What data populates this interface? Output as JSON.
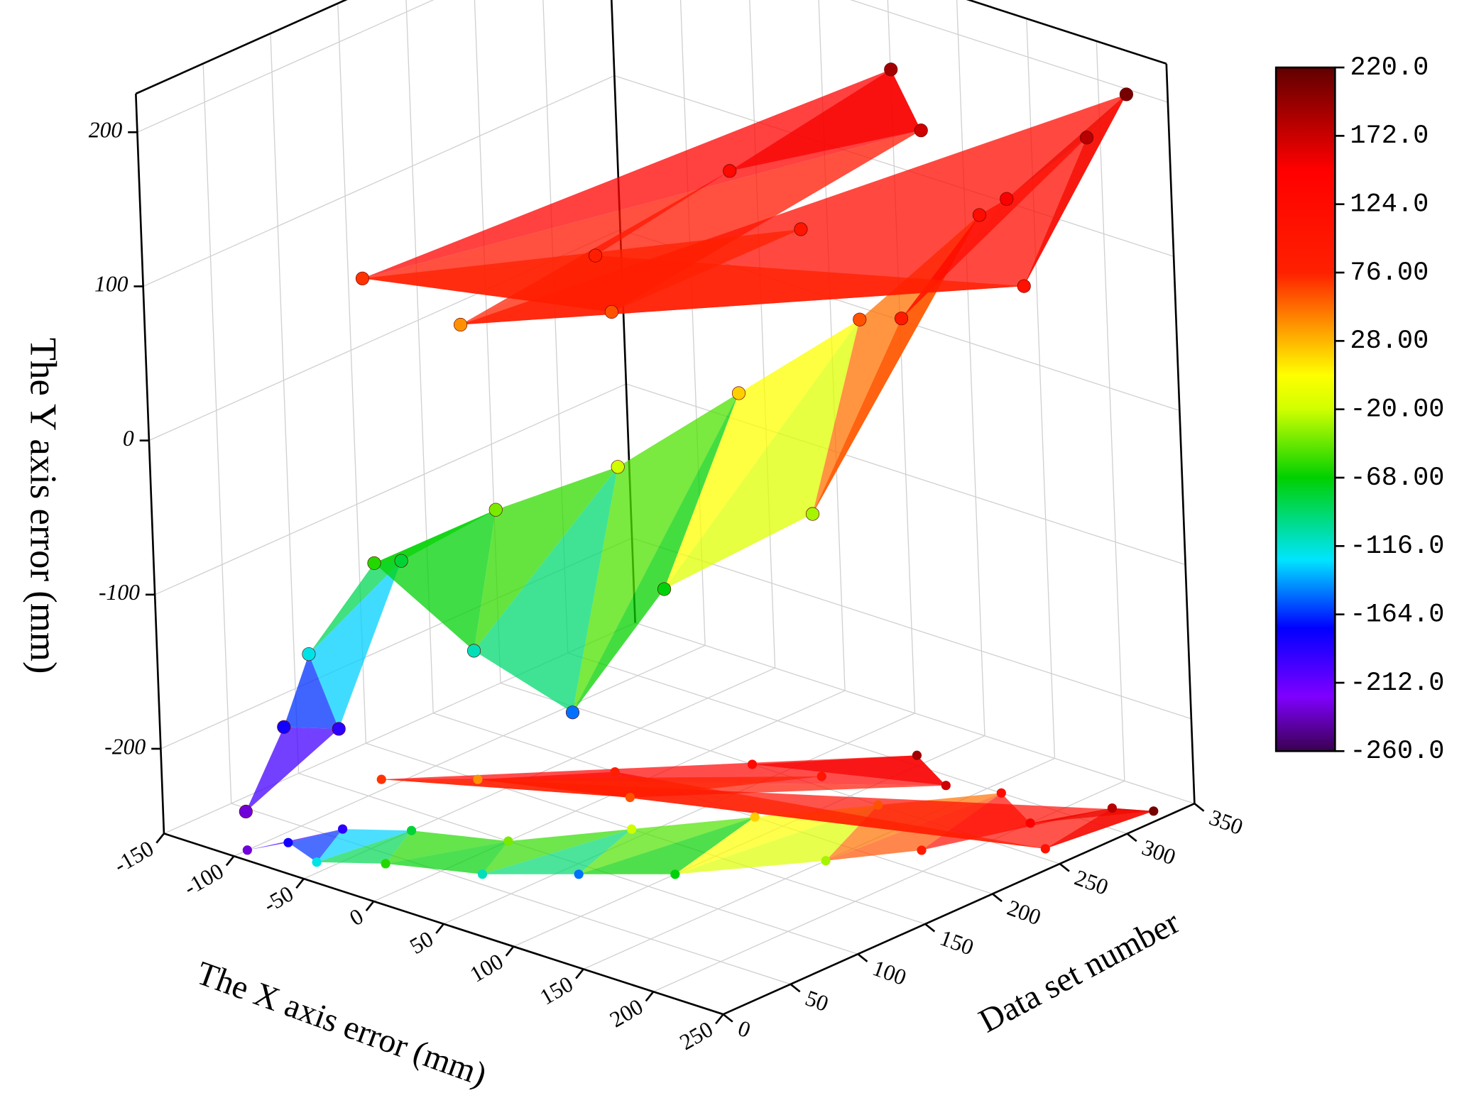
{
  "chart_data": {
    "type": "surface3d",
    "xlabel": "The X axis error (mm)",
    "ylabel": "Data set number",
    "zlabel": "The Y axis error (mm)",
    "xlim": [
      -150,
      250
    ],
    "xticks": [
      -150,
      -100,
      -50,
      0,
      50,
      100,
      150,
      200,
      250
    ],
    "ylim": [
      0,
      350
    ],
    "yticks": [
      0,
      50,
      100,
      150,
      200,
      250,
      300,
      350
    ],
    "zlim": [
      -255,
      225
    ],
    "zticks": [
      -200,
      -100,
      0,
      100,
      200
    ],
    "grid": true,
    "x": [
      -100,
      -90,
      -80,
      -60,
      -50,
      -30,
      0,
      20,
      40,
      60,
      80,
      100,
      120,
      150,
      160,
      180,
      200,
      220,
      240,
      230,
      -70,
      -20,
      30,
      90,
      130,
      -110,
      10,
      70
    ],
    "y": [
      10,
      30,
      60,
      20,
      80,
      40,
      100,
      60,
      150,
      90,
      200,
      120,
      250,
      180,
      300,
      220,
      280,
      320,
      330,
      260,
      150,
      200,
      250,
      310,
      290,
      120,
      180,
      260
    ],
    "z": [
      -230,
      -180,
      -190,
      -120,
      -80,
      -60,
      -40,
      -110,
      -20,
      -150,
      20,
      -70,
      60,
      -30,
      120,
      90,
      150,
      180,
      210,
      110,
      40,
      80,
      130,
      190,
      170,
      70,
      60,
      100
    ],
    "colorbar": {
      "clim": [
        -260,
        220
      ],
      "ticks": [
        {
          "value": 220,
          "label": "220.0"
        },
        {
          "value": 172,
          "label": "172.0"
        },
        {
          "value": 124,
          "label": "124.0"
        },
        {
          "value": 76,
          "label": "76.00"
        },
        {
          "value": 28,
          "label": "28.00"
        },
        {
          "value": -20,
          "label": "-20.00"
        },
        {
          "value": -68,
          "label": "-68.00"
        },
        {
          "value": -116,
          "label": "-116.0"
        },
        {
          "value": -164,
          "label": "-164.0"
        },
        {
          "value": -212,
          "label": "-212.0"
        },
        {
          "value": -260,
          "label": "-260.0"
        }
      ]
    }
  }
}
